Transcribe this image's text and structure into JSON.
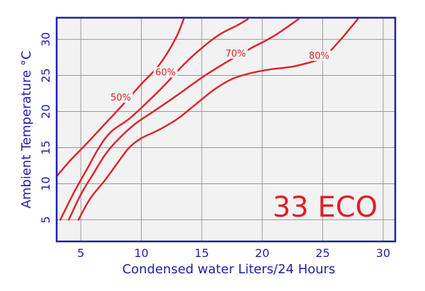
{
  "chart_data": {
    "type": "line",
    "title": "",
    "watermark": "33 ECO",
    "xlabel": "Condensed water Liters/24 Hours",
    "ylabel": "Ambient Temperature °C",
    "xlim": [
      3,
      31
    ],
    "ylim": [
      2,
      33
    ],
    "xticks": [
      5,
      10,
      15,
      20,
      25,
      30
    ],
    "yticks": [
      5,
      10,
      15,
      20,
      25,
      30
    ],
    "grid": true,
    "legend": "none",
    "colors": {
      "curve": "#e01f25",
      "axis": "#1f1fa8",
      "grid": "#9a9a9a",
      "plot_bg": "#f2f2f2"
    },
    "series": [
      {
        "name": "50%",
        "label_at": [
          8.3,
          21.7
        ],
        "points": [
          [
            3.0,
            11.0
          ],
          [
            4.0,
            13.0
          ],
          [
            5.5,
            15.6
          ],
          [
            7.0,
            18.3
          ],
          [
            8.5,
            21.0
          ],
          [
            10.0,
            23.8
          ],
          [
            11.5,
            26.5
          ],
          [
            12.8,
            30.0
          ],
          [
            13.5,
            32.8
          ]
        ]
      },
      {
        "name": "60%",
        "label_at": [
          12.0,
          25.2
        ],
        "points": [
          [
            3.3,
            5.0
          ],
          [
            4.5,
            9.0
          ],
          [
            5.5,
            12.0
          ],
          [
            6.5,
            15.0
          ],
          [
            7.5,
            17.2
          ],
          [
            9.0,
            19.0
          ],
          [
            10.5,
            21.3
          ],
          [
            12.0,
            23.8
          ],
          [
            13.5,
            26.5
          ],
          [
            15.0,
            28.8
          ],
          [
            16.5,
            30.7
          ],
          [
            18.0,
            32.0
          ],
          [
            18.8,
            32.8
          ]
        ]
      },
      {
        "name": "70%",
        "label_at": [
          17.8,
          27.8
        ],
        "points": [
          [
            4.0,
            5.0
          ],
          [
            5.0,
            8.5
          ],
          [
            6.0,
            11.3
          ],
          [
            7.0,
            14.0
          ],
          [
            8.0,
            16.0
          ],
          [
            9.5,
            18.3
          ],
          [
            11.0,
            20.0
          ],
          [
            13.0,
            22.3
          ],
          [
            15.0,
            24.7
          ],
          [
            17.0,
            26.8
          ],
          [
            19.0,
            28.7
          ],
          [
            21.0,
            30.5
          ],
          [
            23.0,
            32.8
          ]
        ]
      },
      {
        "name": "80%",
        "label_at": [
          24.7,
          27.5
        ],
        "points": [
          [
            4.8,
            5.0
          ],
          [
            5.8,
            8.0
          ],
          [
            7.0,
            10.5
          ],
          [
            8.0,
            12.8
          ],
          [
            9.0,
            15.0
          ],
          [
            10.0,
            16.3
          ],
          [
            11.5,
            17.5
          ],
          [
            13.0,
            19.0
          ],
          [
            14.5,
            21.0
          ],
          [
            16.0,
            23.0
          ],
          [
            17.5,
            24.5
          ],
          [
            19.0,
            25.3
          ],
          [
            20.5,
            25.8
          ],
          [
            22.0,
            26.1
          ],
          [
            23.0,
            26.4
          ],
          [
            25.0,
            27.5
          ],
          [
            26.5,
            30.0
          ],
          [
            27.3,
            31.6
          ],
          [
            27.9,
            32.8
          ]
        ]
      }
    ]
  }
}
